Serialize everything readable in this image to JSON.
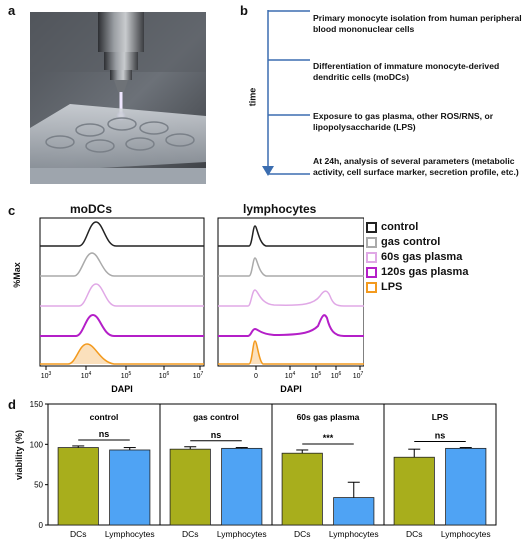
{
  "panels": {
    "a": "a",
    "b": "b",
    "c": "c",
    "d": "d"
  },
  "panel_b": {
    "axis_label": "time",
    "steps": [
      "Primary monocyte isolation from human peripheral blood mononuclear cells",
      "Differentiation of immature monocyte-derived dendritic cells (moDCs)",
      "Exposure to gas plasma, other ROS/RNS, or lipopolysaccharide (LPS)",
      "At 24h, analysis of several parameters (metabolic activity, cell surface marker, secretion profile, etc.)"
    ]
  },
  "panel_c": {
    "ylabel": "%Max",
    "left_title": "moDCs",
    "right_title": "lymphocytes",
    "xlabel_left": "DAPI",
    "xlabel_right": "DAPI",
    "left_ticks": [
      {
        "b": "10",
        "e": "3"
      },
      {
        "b": "10",
        "e": "4"
      },
      {
        "b": "10",
        "e": "5"
      },
      {
        "b": "10",
        "e": "6"
      },
      {
        "b": "10",
        "e": "7"
      }
    ],
    "right_ticks": [
      {
        "b": "0",
        "e": ""
      },
      {
        "b": "10",
        "e": "4"
      },
      {
        "b": "10",
        "e": "5"
      },
      {
        "b": "10",
        "e": "6"
      },
      {
        "b": "10",
        "e": "7"
      }
    ],
    "legend": [
      {
        "label": "control",
        "color": "#222222"
      },
      {
        "label": "gas control",
        "color": "#aaaaaa"
      },
      {
        "label": "60s gas plasma",
        "color": "#e0a8e6"
      },
      {
        "label": "120s gas plasma",
        "color": "#b41fc8"
      },
      {
        "label": "LPS",
        "color": "#f39a1e"
      }
    ]
  },
  "chart_data": {
    "type": "bar",
    "ylabel": "viability (%)",
    "ylim": [
      0,
      150
    ],
    "yticks": [
      "0",
      "50",
      "100",
      "150"
    ],
    "groups": [
      {
        "title": "control",
        "categories": [
          "DCs",
          "Lymphocytes"
        ],
        "values": [
          96,
          93
        ],
        "errors": [
          2,
          3
        ],
        "significance": "ns"
      },
      {
        "title": "gas control",
        "categories": [
          "DCs",
          "Lymphocytes"
        ],
        "values": [
          94,
          95
        ],
        "errors": [
          3,
          1
        ],
        "significance": "ns"
      },
      {
        "title": "60s gas plasma",
        "categories": [
          "DCs",
          "Lymphocytes"
        ],
        "values": [
          89,
          34
        ],
        "errors": [
          4,
          19
        ],
        "significance": "***"
      },
      {
        "title": "LPS",
        "categories": [
          "DCs",
          "Lymphocytes"
        ],
        "values": [
          84,
          95
        ],
        "errors": [
          10,
          1
        ],
        "significance": "ns"
      }
    ],
    "colors": {
      "DCs": "#a8ae1c",
      "Lymphocytes": "#4fa3f4"
    }
  }
}
